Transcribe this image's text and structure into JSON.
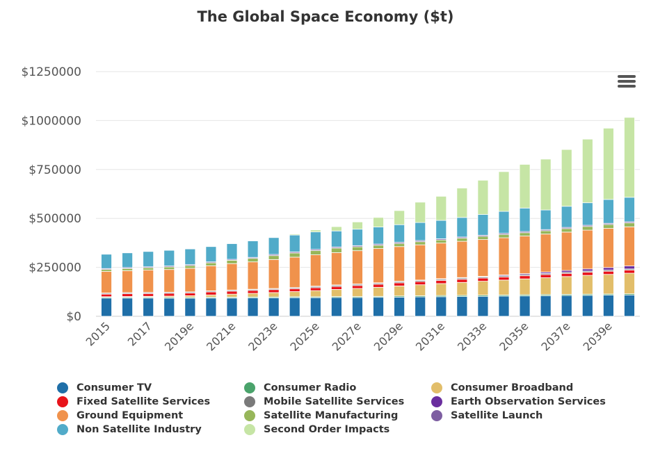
{
  "chart_data": {
    "type": "bar",
    "stacked": true,
    "title": "The Global Space Economy ($t)",
    "xlabel": "",
    "ylabel": "",
    "ylim": [
      0,
      1250000
    ],
    "y_ticks": [
      "$0",
      "$250000",
      "$500000",
      "$750000",
      "$1000000",
      "$1250000"
    ],
    "y_tick_values": [
      0,
      250000,
      500000,
      750000,
      1000000,
      1250000
    ],
    "grid": true,
    "legend_position": "bottom",
    "categories": [
      "2015",
      "2016",
      "2017",
      "2018",
      "2019e",
      "2020e",
      "2021e",
      "2022e",
      "2023e",
      "2024e",
      "2025e",
      "2026e",
      "2027e",
      "2028e",
      "2029e",
      "2030e",
      "2031e",
      "2032e",
      "2033e",
      "2034e",
      "2035e",
      "2036e",
      "2037e",
      "2038e",
      "2039e",
      "2040e"
    ],
    "x_tick_labels": [
      "2015",
      "",
      "2017",
      "",
      "2019e",
      "",
      "2021e",
      "",
      "2023e",
      "",
      "2025e",
      "",
      "2027e",
      "",
      "2029e",
      "",
      "2031e",
      "",
      "2033e",
      "",
      "2035e",
      "",
      "2037e",
      "",
      "2039e",
      ""
    ],
    "series": [
      {
        "name": "Consumer TV",
        "color": "#1f6fa8",
        "values": [
          93000,
          93000,
          93000,
          92000,
          92000,
          93000,
          93000,
          94000,
          94000,
          95000,
          95000,
          96000,
          96000,
          97000,
          98000,
          99000,
          100000,
          101000,
          102000,
          103000,
          104000,
          105000,
          106000,
          107000,
          108000,
          109000
        ]
      },
      {
        "name": "Consumer Radio",
        "color": "#4aa36b",
        "values": [
          5000,
          5000,
          5000,
          5000,
          5000,
          5000,
          5000,
          5000,
          5000,
          5000,
          5000,
          5000,
          5000,
          5000,
          6000,
          6000,
          6000,
          6000,
          6000,
          6000,
          6000,
          6000,
          6000,
          6000,
          6000,
          6000
        ]
      },
      {
        "name": "Consumer Broadband",
        "color": "#e2be6a",
        "values": [
          2000,
          3000,
          4000,
          6000,
          8000,
          11000,
          15000,
          18000,
          22000,
          26000,
          31000,
          36000,
          41000,
          46000,
          51000,
          56000,
          61000,
          66000,
          71000,
          76000,
          81000,
          86000,
          91000,
          96000,
          100000,
          105000
        ]
      },
      {
        "name": "Fixed Satellite Services",
        "color": "#e8141b",
        "values": [
          13000,
          14000,
          14000,
          14000,
          14000,
          15000,
          15000,
          15000,
          15000,
          15000,
          15000,
          15000,
          15000,
          15000,
          16000,
          16000,
          16000,
          16000,
          16000,
          16000,
          16000,
          16000,
          16000,
          16000,
          16000,
          16000
        ]
      },
      {
        "name": "Mobile Satellite Services",
        "color": "#7a7a7a",
        "values": [
          5000,
          5000,
          5000,
          5000,
          5000,
          5000,
          5000,
          5000,
          5000,
          5000,
          6000,
          6000,
          6000,
          6000,
          6000,
          6000,
          6000,
          6000,
          6000,
          6000,
          6000,
          6000,
          6000,
          6000,
          6000,
          6000
        ]
      },
      {
        "name": "Earth Observation Services",
        "color": "#6a2e9e",
        "values": [
          1000,
          1000,
          1000,
          1000,
          1000,
          1000,
          1000,
          1000,
          1000,
          1000,
          2000,
          2000,
          2000,
          2000,
          2000,
          2000,
          3000,
          3000,
          3000,
          4000,
          5000,
          7000,
          9000,
          11000,
          13000,
          15000
        ]
      },
      {
        "name": "Ground Equipment",
        "color": "#f0924c",
        "values": [
          110000,
          112000,
          114000,
          116000,
          120000,
          128000,
          135000,
          140000,
          148000,
          155000,
          160000,
          165000,
          170000,
          175000,
          177000,
          180000,
          182000,
          185000,
          188000,
          190000,
          192000,
          194000,
          196000,
          198000,
          200000,
          200000
        ]
      },
      {
        "name": "Satellite Manufacturing",
        "color": "#97b65a",
        "values": [
          10000,
          11000,
          12000,
          13000,
          14000,
          15000,
          17000,
          18000,
          20000,
          21000,
          22000,
          23000,
          20000,
          17000,
          16000,
          16000,
          16000,
          16000,
          16000,
          17000,
          17000,
          17000,
          18000,
          19000,
          20000,
          20000
        ]
      },
      {
        "name": "Satellite Launch",
        "color": "#7d5ea1",
        "values": [
          5000,
          5000,
          5000,
          5000,
          5000,
          5000,
          5000,
          5000,
          6000,
          6000,
          6000,
          6000,
          6000,
          6000,
          6000,
          6000,
          6000,
          6000,
          6000,
          6000,
          6000,
          6000,
          6000,
          6000,
          6000,
          6000
        ]
      },
      {
        "name": "Non Satellite Industry",
        "color": "#51abc9",
        "values": [
          73000,
          75000,
          78000,
          80000,
          80000,
          78000,
          80000,
          84000,
          86000,
          86000,
          89000,
          82000,
          84000,
          87000,
          90000,
          92000,
          94000,
          100000,
          106000,
          112000,
          120000,
          100000,
          108000,
          115000,
          122000,
          125000
        ]
      },
      {
        "name": "Second Order Impacts",
        "color": "#c6e5a5",
        "values": [
          0,
          0,
          0,
          0,
          0,
          0,
          0,
          0,
          0,
          5000,
          10000,
          22000,
          37000,
          49000,
          72000,
          104000,
          123000,
          150000,
          175000,
          203000,
          223000,
          260000,
          290000,
          325000,
          364000,
          408000
        ]
      }
    ]
  },
  "legend_items": [
    {
      "label": "Consumer TV",
      "color": "#1f6fa8"
    },
    {
      "label": "Consumer Radio",
      "color": "#4aa36b"
    },
    {
      "label": "Consumer Broadband",
      "color": "#e2be6a"
    },
    {
      "label": "Fixed Satellite Services",
      "color": "#e8141b"
    },
    {
      "label": "Mobile Satellite Services",
      "color": "#7a7a7a"
    },
    {
      "label": "Earth Observation Services",
      "color": "#6a2e9e"
    },
    {
      "label": "Ground Equipment",
      "color": "#f0924c"
    },
    {
      "label": "Satellite Manufacturing",
      "color": "#97b65a"
    },
    {
      "label": "Satellite Launch",
      "color": "#7d5ea1"
    },
    {
      "label": "Non Satellite Industry",
      "color": "#51abc9"
    },
    {
      "label": "Second Order Impacts",
      "color": "#c6e5a5"
    }
  ],
  "menu": {
    "icon": "hamburger-menu-icon"
  }
}
